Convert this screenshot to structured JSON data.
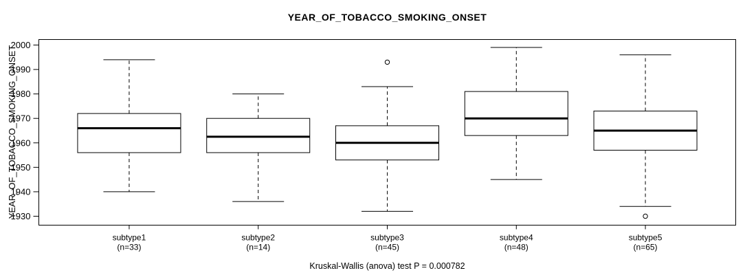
{
  "page": {
    "title": "YEAR_OF_TOBACCO_SMOKING_ONSET",
    "footer": "Kruskal-Wallis (anova) test P = 0.000782"
  },
  "chart_data": {
    "type": "boxplot",
    "title": "YEAR_OF_TOBACCO_SMOKING_ONSET",
    "xlabel": "",
    "ylabel": "YEAR_OF_TOBACCO_SMOKING_ONSET",
    "ylim": [
      1930,
      2000
    ],
    "yticks": [
      1930,
      1940,
      1950,
      1960,
      1970,
      1980,
      1990,
      2000
    ],
    "grid": false,
    "legend": "none",
    "annotation": "Kruskal-Wallis (anova) test P = 0.000782",
    "categories": [
      "subtype1",
      "subtype2",
      "subtype3",
      "subtype4",
      "subtype5"
    ],
    "category_sublabels": [
      "(n=33)",
      "(n=14)",
      "(n=45)",
      "(n=48)",
      "(n=65)"
    ],
    "series": [
      {
        "name": "subtype1",
        "n": 33,
        "whisker_low": 1940,
        "q1": 1956,
        "median": 1966,
        "q3": 1972,
        "whisker_high": 1994,
        "outliers": []
      },
      {
        "name": "subtype2",
        "n": 14,
        "whisker_low": 1936,
        "q1": 1956,
        "median": 1962.5,
        "q3": 1970,
        "whisker_high": 1980,
        "outliers": []
      },
      {
        "name": "subtype3",
        "n": 45,
        "whisker_low": 1932,
        "q1": 1953,
        "median": 1960,
        "q3": 1967,
        "whisker_high": 1983,
        "outliers": [
          1993
        ]
      },
      {
        "name": "subtype4",
        "n": 48,
        "whisker_low": 1945,
        "q1": 1963,
        "median": 1970,
        "q3": 1981,
        "whisker_high": 1999,
        "outliers": []
      },
      {
        "name": "subtype5",
        "n": 65,
        "whisker_low": 1934,
        "q1": 1957,
        "median": 1965,
        "q3": 1973,
        "whisker_high": 1996,
        "outliers": [
          1930
        ]
      }
    ],
    "colors": {
      "line": "#000000",
      "box_fill": "#ffffff",
      "background": "#ffffff"
    }
  }
}
